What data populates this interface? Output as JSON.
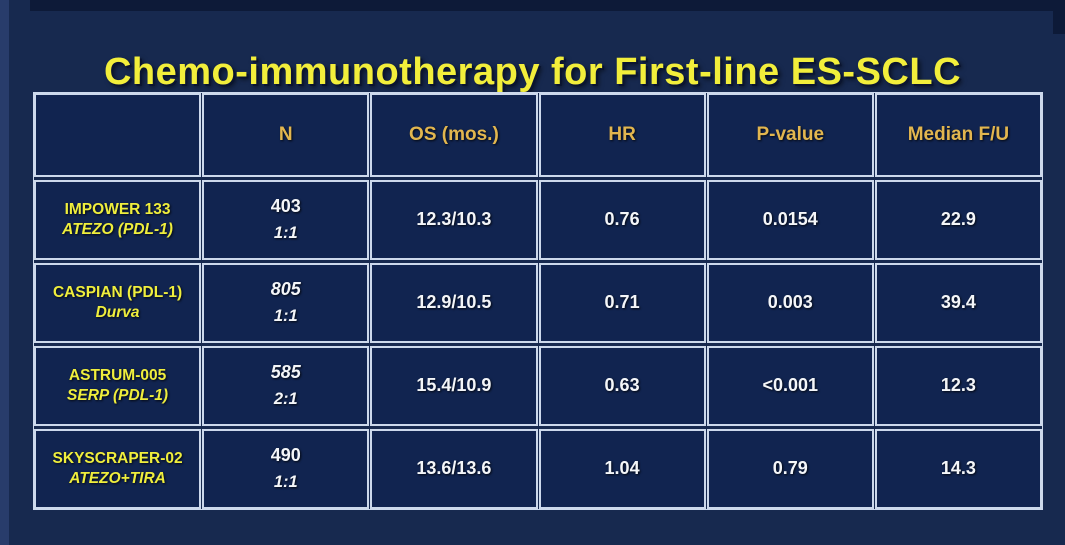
{
  "title": "Chemo-immunotherapy for First-line ES-SCLC",
  "colors": {
    "background": "#17294f",
    "cell_background": "#112450",
    "table_border": "#cdd9ec",
    "title_yellow": "#f2ee3b",
    "header_gold": "#e2b64f",
    "trial_label_yellow": "#efee3d",
    "value_white": "#f4f6f9"
  },
  "table": {
    "columns": [
      "",
      "N",
      "OS (mos.)",
      "HR",
      "P-value",
      "Median F/U"
    ],
    "rows": [
      {
        "trial": "IMPOWER 133",
        "agent": "ATEZO (PDL-1)",
        "n": "403",
        "ratio": "1:1",
        "os": "12.3/10.3",
        "hr": "0.76",
        "p_value": "0.0154",
        "median_fu": "22.9"
      },
      {
        "trial": "CASPIAN (PDL-1)",
        "agent": "Durva",
        "n": "805",
        "ratio": "1:1",
        "os": "12.9/10.5",
        "hr": "0.71",
        "p_value": "0.003",
        "median_fu": "39.4"
      },
      {
        "trial": "ASTRUM-005",
        "agent": "SERP (PDL-1)",
        "n": "585",
        "ratio": "2:1",
        "os": "15.4/10.9",
        "hr": "0.63",
        "p_value": "<0.001",
        "median_fu": "12.3"
      },
      {
        "trial": "SKYSCRAPER-02",
        "agent": "ATEZO+TIRA",
        "n": "490",
        "ratio": "1:1",
        "os": "13.6/13.6",
        "hr": "1.04",
        "p_value": "0.79",
        "median_fu": "14.3"
      }
    ]
  }
}
